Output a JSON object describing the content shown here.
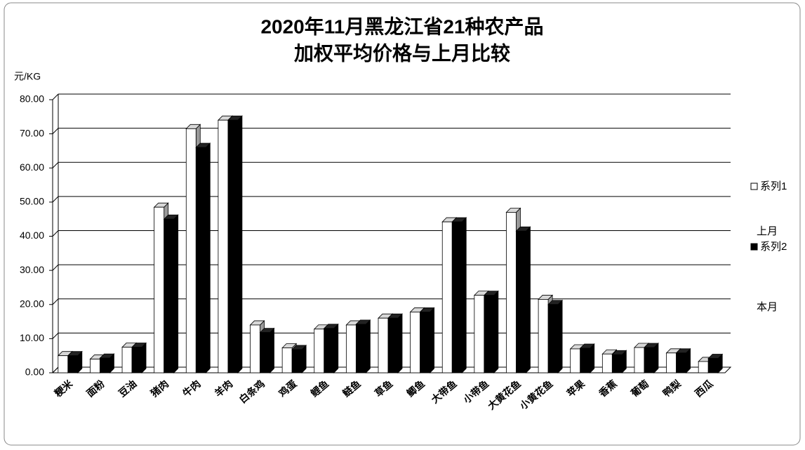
{
  "chart_data": {
    "type": "bar3d",
    "title": [
      "2020年11月黑龙江省21种农产品",
      "加权平均价格与上月比较"
    ],
    "y_label": "元/KG",
    "categories": [
      "粳米",
      "面粉",
      "豆油",
      "猪肉",
      "牛肉",
      "羊肉",
      "白条鸡",
      "鸡蛋",
      "鲤鱼",
      "鲢鱼",
      "草鱼",
      "鲫鱼",
      "大带鱼",
      "小带鱼",
      "大黄花鱼",
      "小黄花鱼",
      "苹果",
      "香蕉",
      "葡萄",
      "鸭梨",
      "西瓜"
    ],
    "series": [
      {
        "name": "系列1",
        "color": "#ffffff",
        "values": [
          5.0,
          4.0,
          7.5,
          48.5,
          71.5,
          74.0,
          14.0,
          7.3,
          12.8,
          14.0,
          16.0,
          17.8,
          44.2,
          22.7,
          47.0,
          21.5,
          7.0,
          5.5,
          7.4,
          5.8,
          3.3
        ]
      },
      {
        "name": "系列2",
        "color": "#000000",
        "values": [
          5.0,
          4.3,
          7.5,
          45.0,
          66.0,
          74.0,
          11.8,
          6.8,
          13.0,
          14.2,
          16.0,
          17.8,
          44.2,
          22.7,
          41.5,
          20.0,
          7.2,
          5.3,
          7.4,
          5.8,
          4.2
        ]
      }
    ],
    "annotations": [
      "上月",
      "本月"
    ],
    "ylim": [
      0,
      80
    ],
    "yticks": [
      {
        "value": 0,
        "label": "0.00"
      },
      {
        "value": 10,
        "label": "10.00"
      },
      {
        "value": 20,
        "label": "20.00"
      },
      {
        "value": 30,
        "label": "30.00"
      },
      {
        "value": 40,
        "label": "40.00"
      },
      {
        "value": 50,
        "label": "50.00"
      },
      {
        "value": 60,
        "label": "60.00"
      },
      {
        "value": 70,
        "label": "70.00"
      },
      {
        "value": 80,
        "label": "80.00"
      }
    ],
    "grid": true,
    "legend": "right"
  }
}
